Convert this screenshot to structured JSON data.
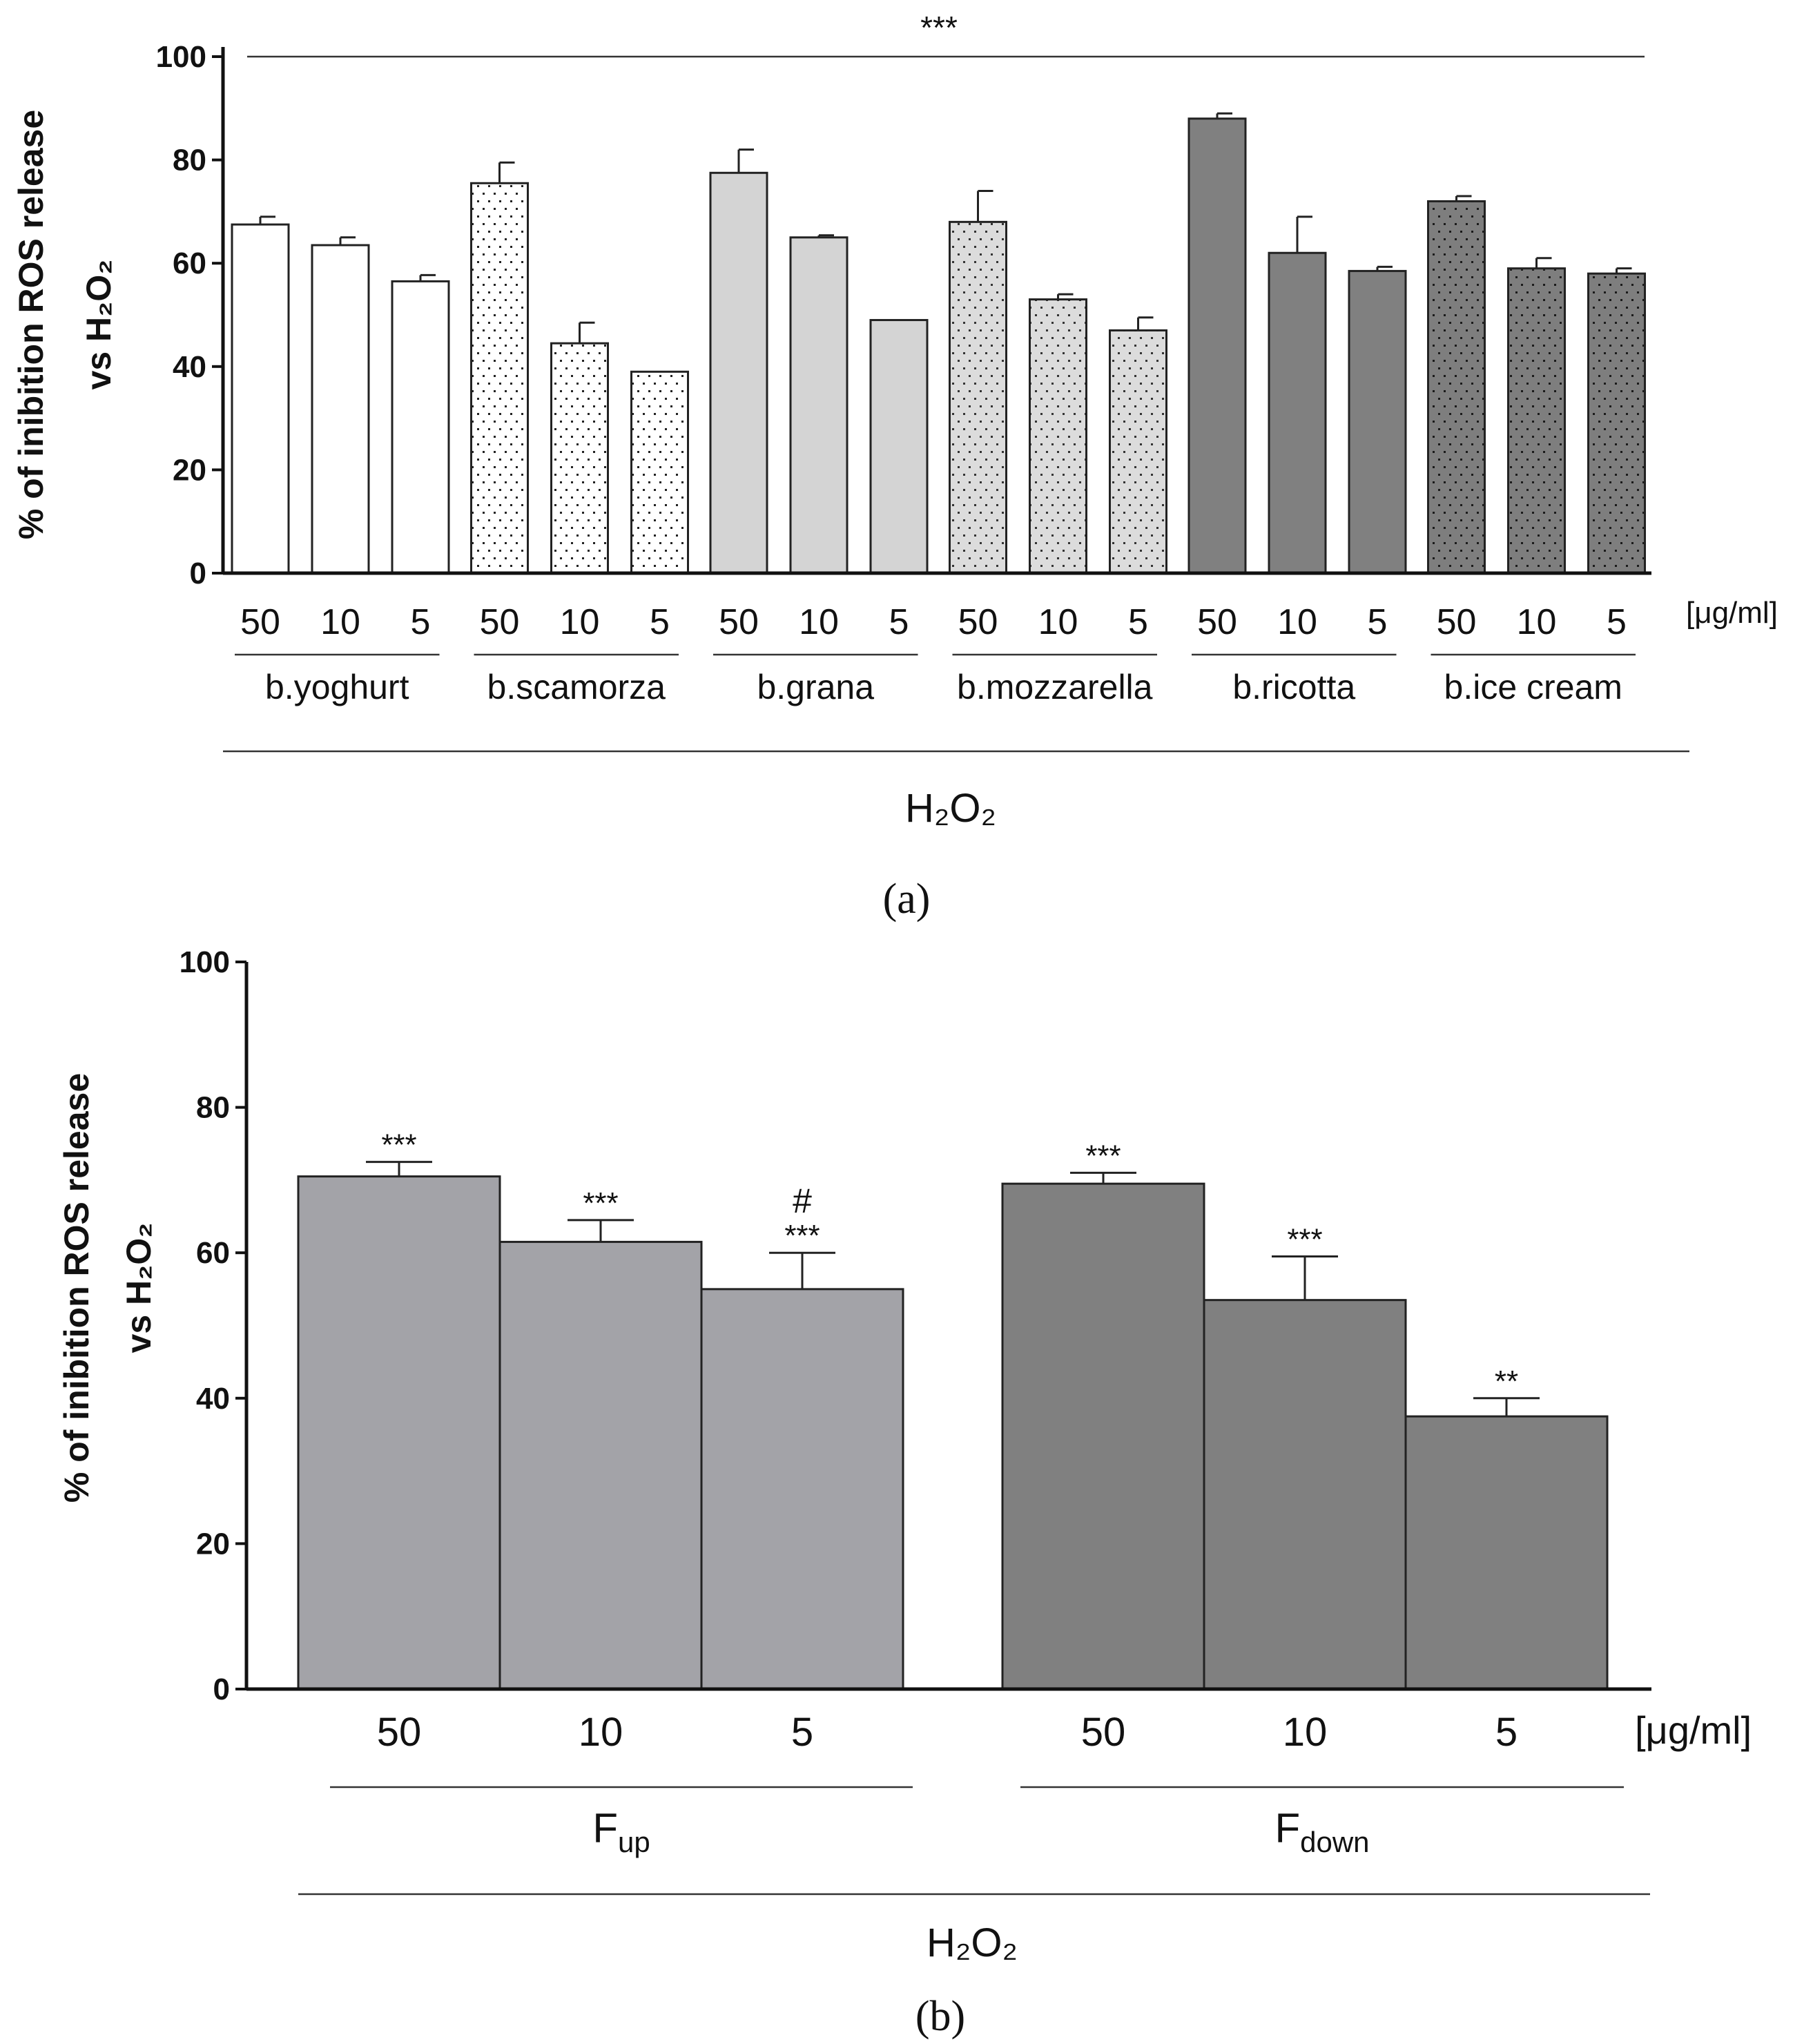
{
  "chart_data": [
    {
      "panel": "(a)",
      "type": "bar",
      "ylabel_line1": "% of inibition ROS release",
      "ylabel_line2": "vs H₂O₂",
      "ylim": [
        0,
        100
      ],
      "yticks": [
        0,
        20,
        40,
        60,
        80,
        100
      ],
      "unit_label": "[μg/ml]",
      "global_significance": "***",
      "treatment": "H₂O₂",
      "groups": [
        {
          "name": "b.yoghurt",
          "fill": "#ffffff",
          "pattern": "none",
          "bars": [
            {
              "dose": "50",
              "value": 67.5,
              "sd": 1.5
            },
            {
              "dose": "10",
              "value": 63.5,
              "sd": 1.5
            },
            {
              "dose": "5",
              "value": 56.5,
              "sd": 1.2
            }
          ]
        },
        {
          "name": "b.scamorza",
          "fill": "#ffffff",
          "pattern": "dots-dark",
          "bars": [
            {
              "dose": "50",
              "value": 75.5,
              "sd": 4
            },
            {
              "dose": "10",
              "value": 44.5,
              "sd": 4
            },
            {
              "dose": "5",
              "value": 39,
              "sd": 0
            }
          ]
        },
        {
          "name": "b.grana",
          "fill": "#d4d4d4",
          "pattern": "none",
          "bars": [
            {
              "dose": "50",
              "value": 77.5,
              "sd": 4.5
            },
            {
              "dose": "10",
              "value": 65,
              "sd": 0.4
            },
            {
              "dose": "5",
              "value": 49,
              "sd": 0
            }
          ]
        },
        {
          "name": "b.mozzarella",
          "fill": "#dcdcdc",
          "pattern": "dots-light",
          "bars": [
            {
              "dose": "50",
              "value": 68,
              "sd": 6
            },
            {
              "dose": "10",
              "value": 53,
              "sd": 1
            },
            {
              "dose": "5",
              "value": 47,
              "sd": 2.5
            }
          ]
        },
        {
          "name": "b.ricotta",
          "fill": "#808080",
          "pattern": "none",
          "bars": [
            {
              "dose": "50",
              "value": 88,
              "sd": 1
            },
            {
              "dose": "10",
              "value": 62,
              "sd": 7
            },
            {
              "dose": "5",
              "value": 58.5,
              "sd": 0.8
            }
          ]
        },
        {
          "name": "b.ice cream",
          "fill": "#7e7e7e",
          "pattern": "dots-on-dark",
          "bars": [
            {
              "dose": "50",
              "value": 72,
              "sd": 1
            },
            {
              "dose": "10",
              "value": 59,
              "sd": 2
            },
            {
              "dose": "5",
              "value": 58,
              "sd": 1
            }
          ]
        }
      ]
    },
    {
      "panel": "(b)",
      "type": "bar",
      "ylabel_line1": "% of inibition ROS release",
      "ylabel_line2": "vs H₂O₂",
      "ylim": [
        0,
        100
      ],
      "yticks": [
        0,
        20,
        40,
        60,
        80,
        100
      ],
      "unit_label": "[μg/ml]",
      "treatment": "H₂O₂",
      "groups": [
        {
          "name": "F",
          "subscript": "up",
          "fill": "#a3a3a8",
          "bars": [
            {
              "dose": "50",
              "value": 70.5,
              "sd": 2,
              "sig": "***",
              "hash": ""
            },
            {
              "dose": "10",
              "value": 61.5,
              "sd": 3,
              "sig": "***",
              "hash": ""
            },
            {
              "dose": "5",
              "value": 55,
              "sd": 5,
              "sig": "***",
              "hash": "#"
            }
          ]
        },
        {
          "name": "F",
          "subscript": "down",
          "fill": "#808080",
          "bars": [
            {
              "dose": "50",
              "value": 69.5,
              "sd": 1.5,
              "sig": "***",
              "hash": ""
            },
            {
              "dose": "10",
              "value": 53.5,
              "sd": 6,
              "sig": "***",
              "hash": ""
            },
            {
              "dose": "5",
              "value": 37.5,
              "sd": 2.5,
              "sig": "**",
              "hash": ""
            }
          ]
        }
      ]
    }
  ]
}
